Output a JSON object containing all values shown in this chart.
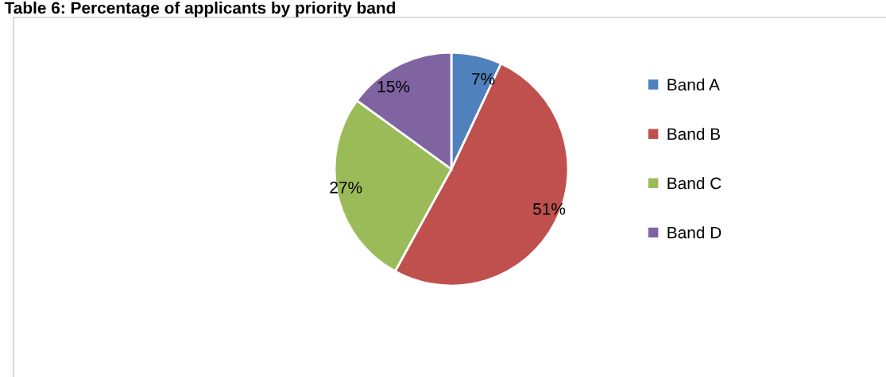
{
  "chart_data": {
    "type": "pie",
    "title": "Table 6: Percentage of applicants by priority band",
    "categories": [
      "Band A",
      "Band B",
      "Band C",
      "Band D"
    ],
    "values": [
      7,
      51,
      27,
      15
    ],
    "value_labels": [
      "7%",
      "51%",
      "27%",
      "15%"
    ],
    "colors": [
      "#4f81bd",
      "#c0504d",
      "#9bbb59",
      "#8064a2"
    ],
    "legend": "right"
  }
}
